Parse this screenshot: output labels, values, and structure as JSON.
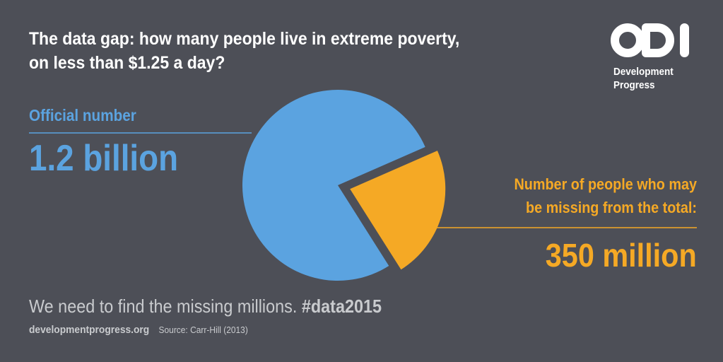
{
  "title": {
    "line1": "The data gap: how many people live in extreme poverty,",
    "line2": "on less than $1.25 a day?"
  },
  "logo": {
    "mark": "ODI",
    "line1": "Development",
    "line2": "Progress"
  },
  "official": {
    "label": "Official number",
    "value": "1.2 billion"
  },
  "missing": {
    "label_line1": "Number of people who may",
    "label_line2": "be missing from the total:",
    "value": "350 million"
  },
  "tagline": {
    "text": "We need to find the missing millions. ",
    "hashtag": "#data2015"
  },
  "footer": {
    "site": "developmentprogress.org",
    "source": "Source: Carr-Hill (2013)"
  },
  "colors": {
    "background": "#4d4f57",
    "official": "#5ba3e0",
    "missing": "#f5a925",
    "text": "#ffffff",
    "muted": "#c9cbce"
  },
  "chart_data": {
    "type": "pie",
    "categories": [
      "Official number",
      "Number of people who may be missing from the total"
    ],
    "values": [
      1200,
      350
    ],
    "unit": "million",
    "exploded": [
      false,
      true
    ],
    "colors": [
      "#5ba3e0",
      "#f5a925"
    ]
  }
}
